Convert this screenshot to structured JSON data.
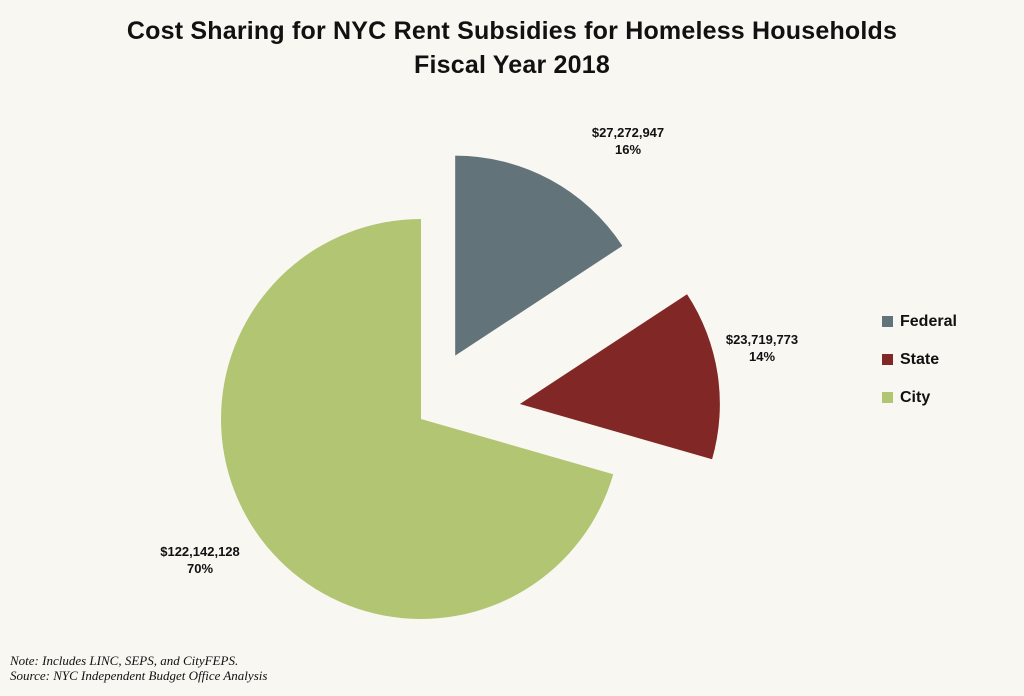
{
  "chart_data": {
    "type": "pie",
    "title": "Cost Sharing for NYC Rent Subsidies for Homeless Households",
    "subtitle": "Fiscal Year 2018",
    "slices": [
      {
        "name": "Federal",
        "value": 27272947,
        "value_label": "$27,272,947",
        "percent_label": "16%",
        "color": "#63737a"
      },
      {
        "name": "State",
        "value": 23719773,
        "value_label": "$23,719,773",
        "percent_label": "14%",
        "color": "#812826"
      },
      {
        "name": "City",
        "value": 122142128,
        "value_label": "$122,142,128",
        "percent_label": "70%",
        "color": "#b2c572"
      }
    ],
    "legend_position": "right",
    "exploded": true
  },
  "notes": {
    "note": "Note: Includes LINC, SEPS, and CityFEPS.",
    "source": "Source: NYC Independent Budget Office Analysis"
  },
  "colors": {
    "background": "#f9f7f2"
  }
}
